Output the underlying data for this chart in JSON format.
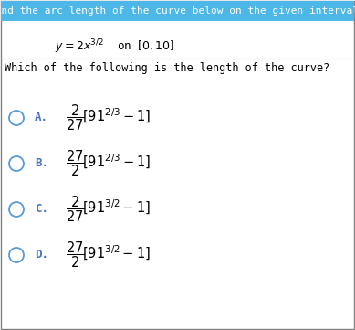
{
  "title": "Find the arc length of the curve below on the given interval.",
  "title_bg": "#4db8e8",
  "title_text_color": "white",
  "question": "Which of the following is the length of the curve?",
  "options": [
    {
      "label": "A.",
      "coeff_num": "2",
      "coeff_den": "27",
      "base": "91",
      "exp": "2/3",
      "tail": "-1"
    },
    {
      "label": "B.",
      "coeff_num": "27",
      "coeff_den": "2",
      "base": "91",
      "exp": "2/3",
      "tail": "-1"
    },
    {
      "label": "C.",
      "coeff_num": "2",
      "coeff_den": "27",
      "base": "91",
      "exp": "3/2",
      "tail": "-1"
    },
    {
      "label": "D.",
      "coeff_num": "27",
      "coeff_den": "2",
      "base": "91",
      "exp": "3/2",
      "tail": "-1"
    }
  ],
  "circle_color": "#5b9bd5",
  "label_color": "#4472c4",
  "bg_color": "white",
  "border_color": "#808080",
  "fig_width": 3.89,
  "fig_height": 3.61,
  "dpi": 100,
  "title_font_size": 8.0,
  "eq_font_size": 9.0,
  "question_font_size": 8.5,
  "option_label_font_size": 9.0,
  "option_math_font_size": 10.5
}
